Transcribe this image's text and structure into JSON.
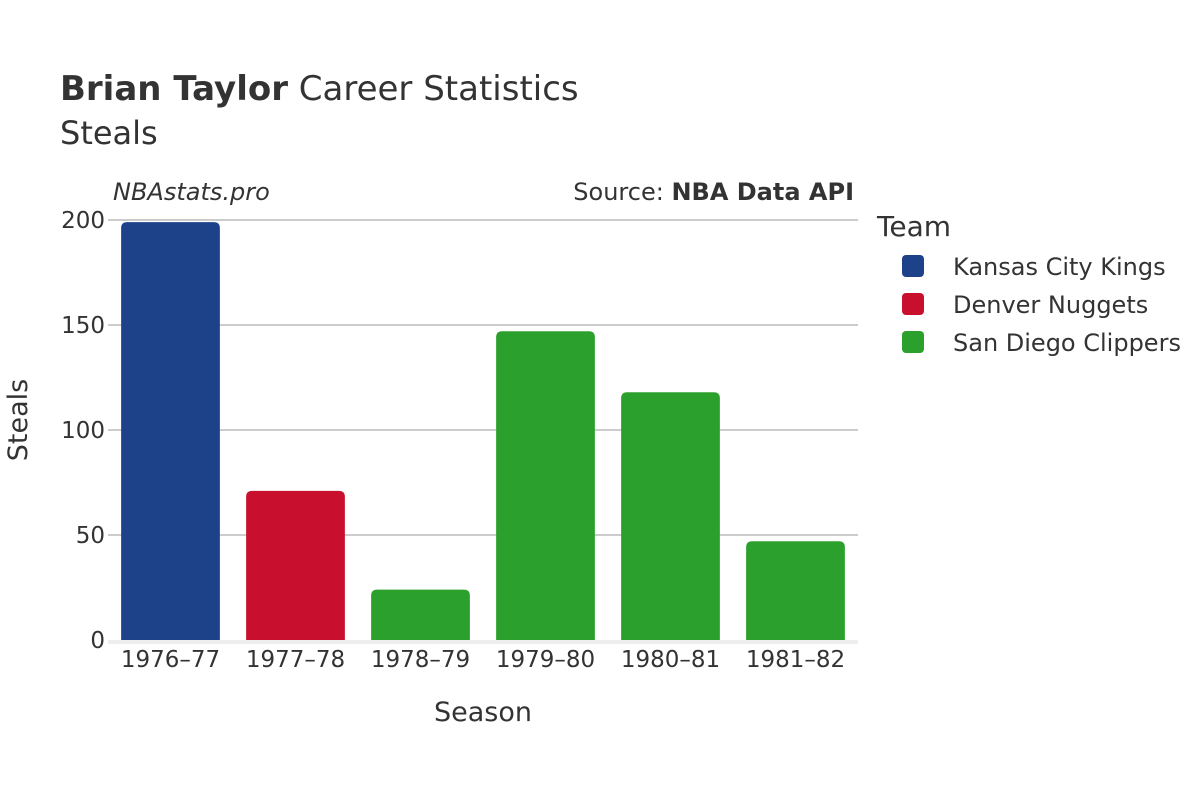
{
  "title": {
    "bold": "Brian Taylor",
    "rest": " Career Statistics"
  },
  "subtitle": "Steals",
  "watermark": "NBAstats.pro",
  "source": {
    "prefix": "Source: ",
    "name": "NBA Data API"
  },
  "chart_data": {
    "type": "bar",
    "categories": [
      "1976–77",
      "1977–78",
      "1978–79",
      "1979–80",
      "1980–81",
      "1981–82"
    ],
    "values": [
      199,
      71,
      24,
      147,
      118,
      47
    ],
    "teams": [
      "Kansas City Kings",
      "Denver Nuggets",
      "San Diego Clippers",
      "San Diego Clippers",
      "San Diego Clippers",
      "San Diego Clippers"
    ],
    "xlabel": "Season",
    "ylabel": "Steals",
    "ylim": [
      0,
      200
    ],
    "yticks": [
      0,
      50,
      100,
      150,
      200
    ],
    "grid": true,
    "legend": {
      "title": "Team",
      "placement": "right",
      "entries": [
        {
          "name": "Kansas City Kings",
          "color": "#1d428a"
        },
        {
          "name": "Denver Nuggets",
          "color": "#c8102e"
        },
        {
          "name": "San Diego Clippers",
          "color": "#2ca02c"
        }
      ]
    }
  }
}
